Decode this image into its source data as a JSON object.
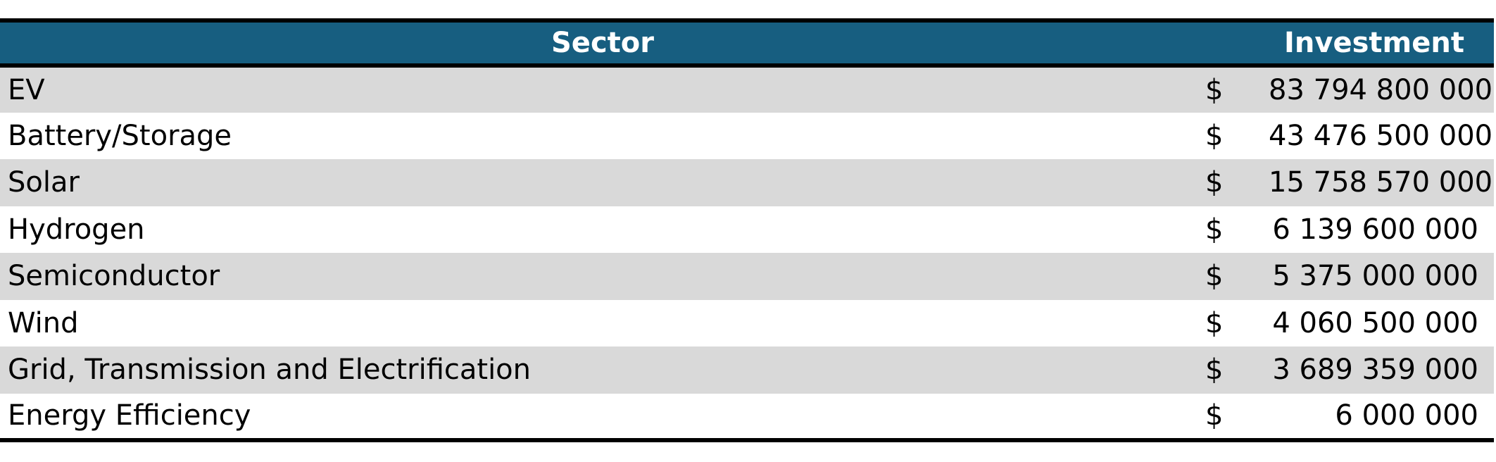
{
  "table": {
    "header": [
      "Sector",
      "Investment"
    ],
    "rows": [
      [
        "EV",
        "$",
        "83 794 800 000"
      ],
      [
        "Battery/Storage",
        "$",
        "43 476 500 000"
      ],
      [
        "Solar",
        "$",
        "15 758 570 000"
      ],
      [
        "Hydrogen",
        "$",
        "6 139 600 000"
      ],
      [
        "Semiconductor",
        "$",
        "5 375 000 000"
      ],
      [
        "Wind",
        "$",
        "4 060 500 000"
      ],
      [
        "Grid, Transmission and Electrification",
        "$",
        "3 689 359 000"
      ],
      [
        "Energy Efficiency",
        "$",
        "6 000 000"
      ]
    ]
  }
}
